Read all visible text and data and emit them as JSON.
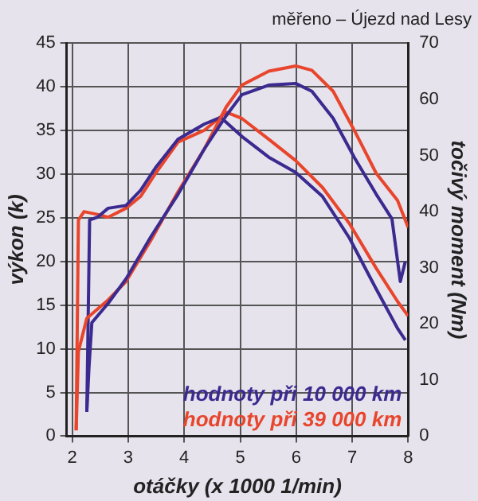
{
  "chart_data": {
    "type": "line",
    "title": "měřeno – Újezd nad Lesy",
    "xlabel": "otáčky (x 1000 1/min)",
    "ylabel": "výkon (k)",
    "y2label": "točivý moment (Nm)",
    "xlim": [
      1.9,
      8
    ],
    "xticks": [
      2,
      3,
      4,
      5,
      6,
      7,
      8
    ],
    "ylim": [
      0,
      45
    ],
    "yticks": [
      0,
      5,
      10,
      15,
      20,
      25,
      30,
      35,
      40,
      45
    ],
    "y2lim": [
      0,
      70
    ],
    "y2ticks": [
      0,
      10,
      20,
      30,
      40,
      50,
      60,
      70
    ],
    "grid": true,
    "legend": "bottom right",
    "marker": "none",
    "line_style": "solid",
    "series": [
      {
        "name": "hodnoty při 10 000 km",
        "color": "#3b2a8f",
        "x": [
          2.26,
          2.3,
          2.35,
          2.64,
          2.96,
          3.41,
          3.89,
          4.36,
          4.75,
          5.03,
          5.51,
          5.99,
          6.28,
          6.66,
          7.04,
          7.43,
          7.71,
          7.86,
          7.95
        ],
        "values": [
          2.8,
          8,
          13,
          15.2,
          18,
          22.9,
          27.7,
          32.9,
          36.7,
          39.1,
          40.2,
          40.4,
          39.5,
          36.4,
          31.9,
          27.7,
          24.9,
          17.7,
          20
        ]
      },
      {
        "name": "hodnoty při 39 000 km",
        "color": "#e8452c",
        "x": [
          2.07,
          2.11,
          2.26,
          2.64,
          2.96,
          3.41,
          3.89,
          4.36,
          4.75,
          5.03,
          5.51,
          5.99,
          6.28,
          6.66,
          7.04,
          7.43,
          7.81,
          8.0
        ],
        "values": [
          0.7,
          9.7,
          13.5,
          15.6,
          17.7,
          22.5,
          28,
          32.9,
          37.7,
          40.2,
          41.8,
          42.4,
          41.9,
          39.5,
          35,
          30.1,
          27,
          23.9
        ]
      },
      {
        "color": "#3b2a8f",
        "axis": "y2",
        "x": [
          2.26,
          2.31,
          2.45,
          2.64,
          2.96,
          3.22,
          3.5,
          3.89,
          4.36,
          4.65,
          5.03,
          5.51,
          5.99,
          6.47,
          6.95,
          7.43,
          7.81,
          7.95
        ],
        "values": [
          4.3,
          38.5,
          39,
          40.6,
          41.1,
          43.8,
          48,
          52.9,
          55.6,
          56.8,
          53.4,
          49.7,
          47,
          42.7,
          35.3,
          26.2,
          19.2,
          17.1
        ]
      },
      {
        "color": "#e8452c",
        "axis": "y2",
        "x": [
          2.07,
          2.11,
          2.21,
          2.45,
          2.64,
          2.96,
          3.22,
          3.5,
          3.89,
          4.36,
          4.75,
          5.03,
          5.51,
          5.99,
          6.47,
          6.95,
          7.43,
          7.81,
          8.0
        ],
        "values": [
          1,
          38.5,
          40,
          39.5,
          39,
          40.6,
          42.7,
          47,
          52.4,
          54.5,
          57.7,
          56.6,
          52.9,
          49.1,
          44.3,
          37.9,
          29.9,
          24,
          21.4
        ]
      }
    ]
  }
}
